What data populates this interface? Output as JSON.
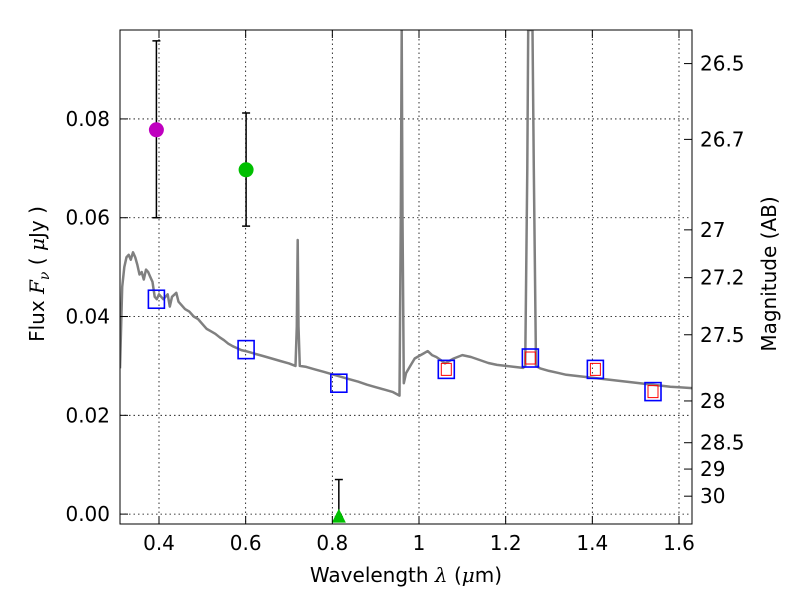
{
  "chart_data": {
    "type": "line",
    "xlabel": "Wavelength  λ (μm)",
    "ylabel": "Flux  Fν  ( μJy )",
    "ylabel_parts": {
      "prefix": "Flux  ",
      "math": "F",
      "sub": "ν",
      "mid": "  ( ",
      "mu": "μ",
      "suffix": "Jy )"
    },
    "xlabel_parts": {
      "prefix": "Wavelength  ",
      "math": "λ",
      "mid": " (",
      "mu": "μ",
      "suffix": "m)"
    },
    "y2label": "Magnitude (AB)",
    "xlim": [
      0.31,
      1.63
    ],
    "ylim": [
      -0.002,
      0.098
    ],
    "grid": true,
    "x_ticks": [
      0.4,
      0.6,
      0.8,
      1.0,
      1.2,
      1.4,
      1.6
    ],
    "x_tick_labels": [
      "0.4",
      "0.6",
      "0.8",
      "1",
      "1.2",
      "1.4",
      "1.6"
    ],
    "y_ticks": [
      0.0,
      0.02,
      0.04,
      0.06,
      0.08
    ],
    "y_tick_labels": [
      "0.00",
      "0.02",
      "0.04",
      "0.06",
      "0.08"
    ],
    "y2_ticks": [
      {
        "label": "26.5",
        "mag": 26.5
      },
      {
        "label": "26.7",
        "mag": 26.7
      },
      {
        "label": "27",
        "mag": 27.0
      },
      {
        "label": "27.2",
        "mag": 27.2
      },
      {
        "label": "27.5",
        "mag": 27.5
      },
      {
        "label": "28",
        "mag": 28.0
      },
      {
        "label": "28.5",
        "mag": 28.5
      },
      {
        "label": "29",
        "mag": 29.0
      },
      {
        "label": "30",
        "mag": 30.0
      }
    ],
    "colors": {
      "model": "#808080",
      "observed_magenta": "#bf00bf",
      "observed_green": "#00bf00",
      "synthetic_box": "#0000ff",
      "synthetic_inner": "#ff0000",
      "errorbar": "#000000"
    },
    "model_sed": [
      [
        0.31,
        0.0295
      ],
      [
        0.315,
        0.046
      ],
      [
        0.32,
        0.05
      ],
      [
        0.325,
        0.052
      ],
      [
        0.33,
        0.0525
      ],
      [
        0.335,
        0.0515
      ],
      [
        0.34,
        0.053
      ],
      [
        0.345,
        0.052
      ],
      [
        0.35,
        0.0505
      ],
      [
        0.355,
        0.0485
      ],
      [
        0.36,
        0.049
      ],
      [
        0.365,
        0.0475
      ],
      [
        0.37,
        0.0495
      ],
      [
        0.375,
        0.049
      ],
      [
        0.38,
        0.048
      ],
      [
        0.385,
        0.047
      ],
      [
        0.39,
        0.044
      ],
      [
        0.395,
        0.0435
      ],
      [
        0.4,
        0.0445
      ],
      [
        0.405,
        0.044
      ],
      [
        0.41,
        0.0435
      ],
      [
        0.42,
        0.0445
      ],
      [
        0.425,
        0.042
      ],
      [
        0.43,
        0.044
      ],
      [
        0.44,
        0.0448
      ],
      [
        0.445,
        0.043
      ],
      [
        0.45,
        0.0425
      ],
      [
        0.46,
        0.0415
      ],
      [
        0.47,
        0.041
      ],
      [
        0.48,
        0.04
      ],
      [
        0.49,
        0.0395
      ],
      [
        0.5,
        0.0385
      ],
      [
        0.51,
        0.0375
      ],
      [
        0.52,
        0.037
      ],
      [
        0.53,
        0.0365
      ],
      [
        0.54,
        0.0358
      ],
      [
        0.55,
        0.0352
      ],
      [
        0.56,
        0.0345
      ],
      [
        0.57,
        0.034
      ],
      [
        0.58,
        0.0336
      ],
      [
        0.59,
        0.0332
      ],
      [
        0.6,
        0.033
      ],
      [
        0.62,
        0.0325
      ],
      [
        0.64,
        0.032
      ],
      [
        0.66,
        0.0315
      ],
      [
        0.68,
        0.031
      ],
      [
        0.7,
        0.0305
      ],
      [
        0.715,
        0.03
      ],
      [
        0.718,
        0.038
      ],
      [
        0.72,
        0.0555
      ],
      [
        0.722,
        0.038
      ],
      [
        0.725,
        0.03
      ],
      [
        0.74,
        0.0298
      ],
      [
        0.76,
        0.0293
      ],
      [
        0.78,
        0.0288
      ],
      [
        0.8,
        0.0283
      ],
      [
        0.82,
        0.0278
      ],
      [
        0.84,
        0.0273
      ],
      [
        0.86,
        0.0268
      ],
      [
        0.88,
        0.0262
      ],
      [
        0.9,
        0.0257
      ],
      [
        0.92,
        0.0252
      ],
      [
        0.94,
        0.0247
      ],
      [
        0.955,
        0.024
      ],
      [
        0.958,
        0.06
      ],
      [
        0.96,
        0.098
      ],
      [
        0.962,
        0.06
      ],
      [
        0.965,
        0.0265
      ],
      [
        0.97,
        0.0285
      ],
      [
        0.98,
        0.03
      ],
      [
        0.99,
        0.0315
      ],
      [
        1.0,
        0.032
      ],
      [
        1.01,
        0.0325
      ],
      [
        1.02,
        0.033
      ],
      [
        1.03,
        0.0322
      ],
      [
        1.04,
        0.0318
      ],
      [
        1.05,
        0.0312
      ],
      [
        1.06,
        0.0305
      ],
      [
        1.08,
        0.0315
      ],
      [
        1.1,
        0.0322
      ],
      [
        1.12,
        0.0318
      ],
      [
        1.14,
        0.0312
      ],
      [
        1.16,
        0.0306
      ],
      [
        1.18,
        0.0302
      ],
      [
        1.2,
        0.03
      ],
      [
        1.22,
        0.0298
      ],
      [
        1.24,
        0.0296
      ],
      [
        1.245,
        0.03
      ],
      [
        1.25,
        0.07
      ],
      [
        1.252,
        0.098
      ],
      [
        1.262,
        0.098
      ],
      [
        1.265,
        0.07
      ],
      [
        1.27,
        0.03
      ],
      [
        1.28,
        0.0295
      ],
      [
        1.3,
        0.029
      ],
      [
        1.32,
        0.0286
      ],
      [
        1.34,
        0.0282
      ],
      [
        1.36,
        0.028
      ],
      [
        1.38,
        0.0278
      ],
      [
        1.4,
        0.0276
      ],
      [
        1.42,
        0.0274
      ],
      [
        1.44,
        0.0272
      ],
      [
        1.46,
        0.027
      ],
      [
        1.48,
        0.0268
      ],
      [
        1.5,
        0.0266
      ],
      [
        1.52,
        0.0264
      ],
      [
        1.54,
        0.0262
      ],
      [
        1.56,
        0.026
      ],
      [
        1.58,
        0.0258
      ],
      [
        1.6,
        0.0257
      ],
      [
        1.63,
        0.0255
      ]
    ],
    "observed_points": [
      {
        "x": 0.394,
        "y": 0.0778,
        "err_low": 0.06,
        "err_high": 0.0958,
        "color": "#bf00bf"
      },
      {
        "x": 0.601,
        "y": 0.0697,
        "err_low": 0.0583,
        "err_high": 0.0812,
        "color": "#00bf00"
      },
      {
        "x": 0.815,
        "y": -0.0005,
        "err_low": -0.0005,
        "err_high": 0.007,
        "color": "#00bf00",
        "marker": "triangle"
      }
    ],
    "synthetic_photometry": [
      {
        "x": 0.394,
        "y": 0.0435,
        "inner": false
      },
      {
        "x": 0.601,
        "y": 0.0333,
        "inner": false
      },
      {
        "x": 0.815,
        "y": 0.0265,
        "inner": false
      },
      {
        "x": 1.063,
        "y": 0.0293,
        "inner": true
      },
      {
        "x": 1.257,
        "y": 0.0316,
        "inner": true
      },
      {
        "x": 1.407,
        "y": 0.0293,
        "inner": true
      },
      {
        "x": 1.54,
        "y": 0.0248,
        "inner": true
      }
    ]
  }
}
